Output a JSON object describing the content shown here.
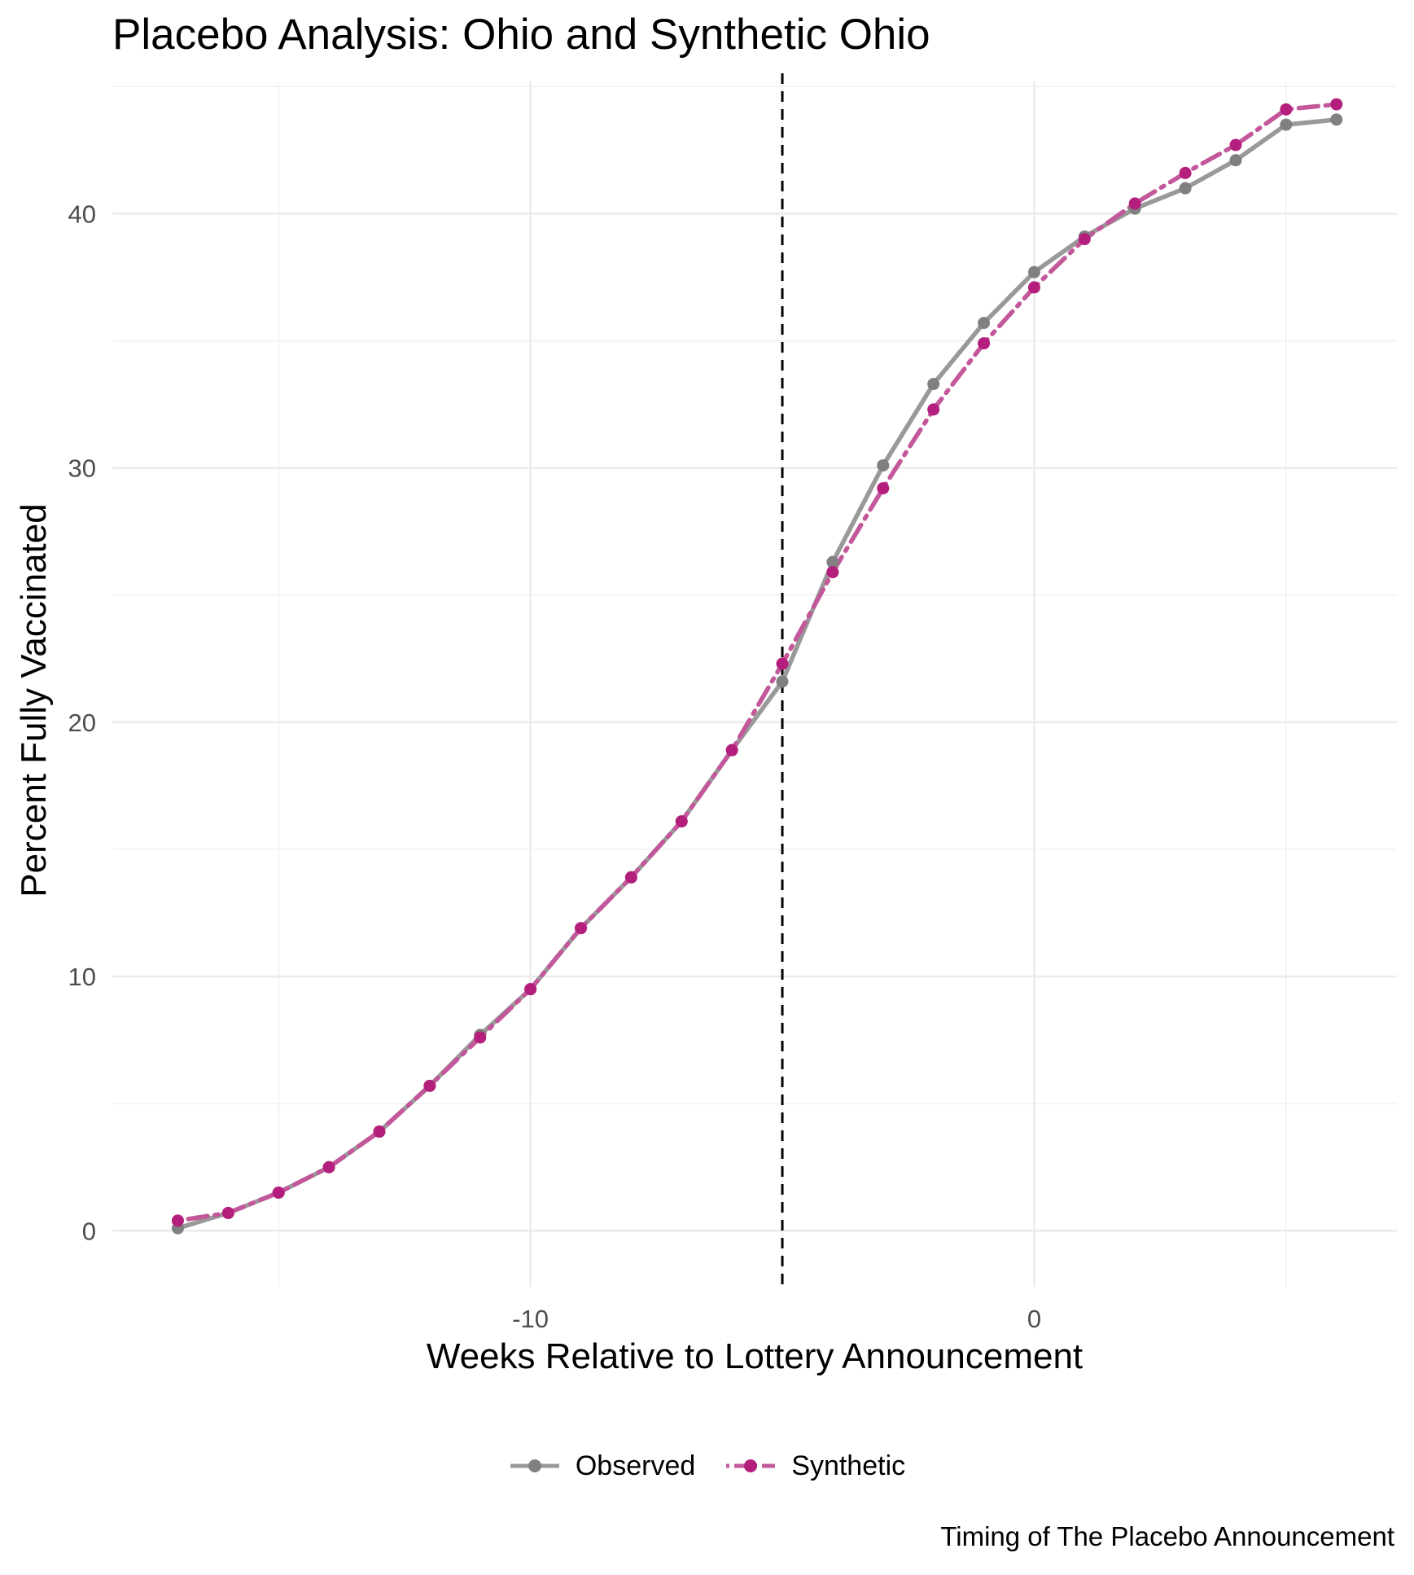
{
  "chart_data": {
    "type": "line",
    "title": "Placebo Analysis: Ohio and Synthetic Ohio",
    "xlabel": "Weeks Relative to Lottery Announcement",
    "ylabel": "Percent Fully Vaccinated",
    "caption": "Timing of The Placebo Announcement",
    "xlim": [
      -18.3,
      7.2
    ],
    "ylim": [
      -2.2,
      45.2
    ],
    "x_ticks": [
      -10,
      0
    ],
    "x_tick_labels": [
      "-10",
      "0"
    ],
    "y_ticks": [
      0,
      10,
      20,
      30,
      40
    ],
    "y_tick_labels": [
      "0",
      "10",
      "20",
      "30",
      "40"
    ],
    "grid": true,
    "placebo_line_x": -5,
    "x": [
      -17,
      -16,
      -15,
      -14,
      -13,
      -12,
      -11,
      -10,
      -9,
      -8,
      -7,
      -6,
      -5,
      -4,
      -3,
      -2,
      -1,
      0,
      1,
      2,
      3,
      4,
      5,
      6
    ],
    "series": [
      {
        "name": "Observed",
        "color": "#999999",
        "marker_color": "#808080",
        "line_style": "solid",
        "values": [
          0.1,
          0.7,
          1.5,
          2.5,
          3.9,
          5.7,
          7.7,
          9.5,
          11.9,
          13.9,
          16.1,
          18.9,
          21.6,
          26.3,
          30.1,
          33.3,
          35.7,
          37.7,
          39.1,
          40.2,
          41.0,
          42.1,
          43.5,
          43.7
        ]
      },
      {
        "name": "Synthetic",
        "color": "#c2579a",
        "marker_color": "#b41f7d",
        "line_style": "dotdash",
        "values": [
          0.4,
          0.7,
          1.5,
          2.5,
          3.9,
          5.7,
          7.6,
          9.5,
          11.9,
          13.9,
          16.1,
          18.9,
          22.3,
          25.9,
          29.2,
          32.3,
          34.9,
          37.1,
          39.0,
          40.4,
          41.6,
          42.7,
          44.1,
          44.3
        ]
      }
    ],
    "legend_position": "bottom"
  }
}
